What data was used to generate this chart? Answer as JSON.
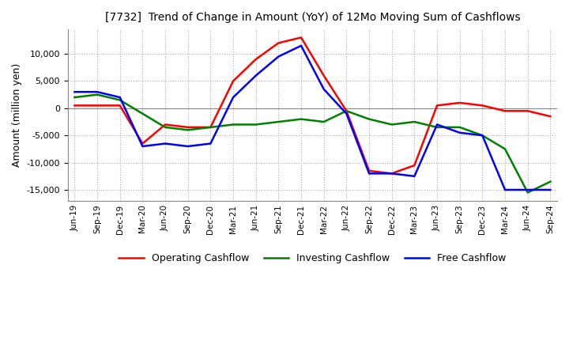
{
  "title": "[7732]  Trend of Change in Amount (YoY) of 12Mo Moving Sum of Cashflows",
  "ylabel": "Amount (million yen)",
  "x_labels": [
    "Jun-19",
    "Sep-19",
    "Dec-19",
    "Mar-20",
    "Jun-20",
    "Sep-20",
    "Dec-20",
    "Mar-21",
    "Jun-21",
    "Sep-21",
    "Dec-21",
    "Mar-22",
    "Jun-22",
    "Sep-22",
    "Dec-22",
    "Mar-23",
    "Jun-23",
    "Sep-23",
    "Dec-23",
    "Mar-24",
    "Jun-24",
    "Sep-24"
  ],
  "operating": [
    500,
    500,
    500,
    -6500,
    -3000,
    -3500,
    -3500,
    5000,
    9000,
    12000,
    13000,
    6000,
    -500,
    -11500,
    -12000,
    -10500,
    500,
    1000,
    500,
    -500,
    -500,
    -1500
  ],
  "investing": [
    2000,
    2500,
    1500,
    -1000,
    -3500,
    -4000,
    -3500,
    -3000,
    -3000,
    -2500,
    -2000,
    -2500,
    -500,
    -2000,
    -3000,
    -2500,
    -3500,
    -3500,
    -5000,
    -7500,
    -15500,
    -13500
  ],
  "free": [
    3000,
    3000,
    2000,
    -7000,
    -6500,
    -7000,
    -6500,
    2000,
    6000,
    9500,
    11500,
    3500,
    -1000,
    -12000,
    -12000,
    -12500,
    -3000,
    -4500,
    -5000,
    -15000,
    -15000,
    -15000
  ],
  "ylim": [
    -17000,
    14500
  ],
  "yticks": [
    -15000,
    -10000,
    -5000,
    0,
    5000,
    10000
  ],
  "colors": {
    "operating": "#ff0000",
    "investing": "#008000",
    "free": "#0000ff"
  },
  "legend_labels": [
    "Operating Cashflow",
    "Investing Cashflow",
    "Free Cashflow"
  ],
  "bg_color": "#ffffff",
  "grid_color": "#aaaaaa"
}
